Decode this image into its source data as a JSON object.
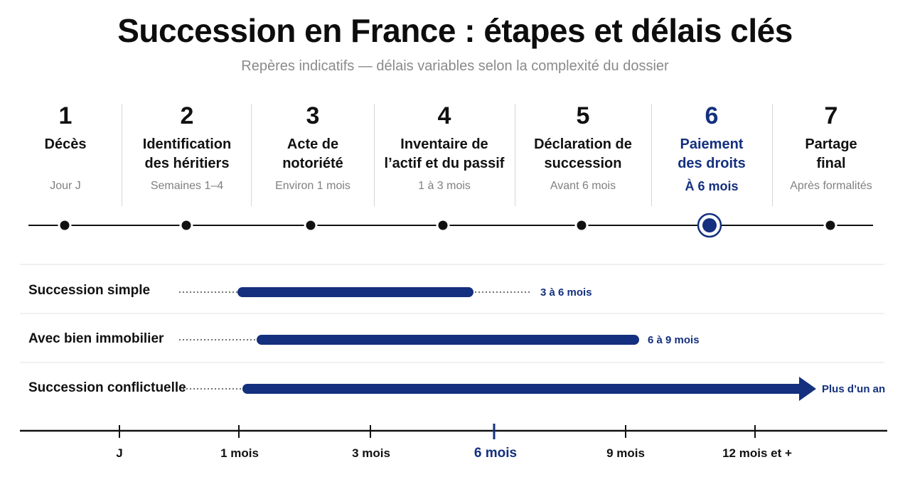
{
  "title": "Succession en France : étapes et délais clés",
  "subtitle": "Repères indicatifs — délais variables selon la complexité du dossier",
  "steps": [
    {
      "number": "1",
      "label": "Décès",
      "delay": "Jour J"
    },
    {
      "number": "2",
      "label": "Identification\ndes héritiers",
      "delay": "Semaines 1–4"
    },
    {
      "number": "3",
      "label": "Acte de\nnotoriété",
      "delay": "Environ 1 mois"
    },
    {
      "number": "4",
      "label": "Inventaire de\nl’actif et du passif",
      "delay": "1 à 3 mois"
    },
    {
      "number": "5",
      "label": "Déclaration de\nsuccession",
      "delay": "Avant 6 mois"
    },
    {
      "number": "6",
      "label": "Paiement\ndes droits",
      "delay": "À 6 mois",
      "highlight": true
    },
    {
      "number": "7",
      "label": "Partage\nfinal",
      "delay": "Après formalités"
    }
  ],
  "scenarios": [
    {
      "label": "Succession simple",
      "range": "3 à 6 mois"
    },
    {
      "label": "Avec bien immobilier",
      "range": "6 à 9 mois"
    },
    {
      "label": "Succession conflictuelle",
      "range": "Plus d’un an",
      "open_ended": true
    }
  ],
  "axis": {
    "ticks": [
      {
        "label": "J"
      },
      {
        "label": "1 mois"
      },
      {
        "label": "3 mois"
      },
      {
        "label": "6 mois",
        "highlight": true
      },
      {
        "label": "9 mois"
      },
      {
        "label": "12 mois et +"
      }
    ]
  },
  "colors": {
    "accent": "#14307e",
    "text": "#111111",
    "muted": "#808080",
    "divider": "#d6d6d6"
  }
}
